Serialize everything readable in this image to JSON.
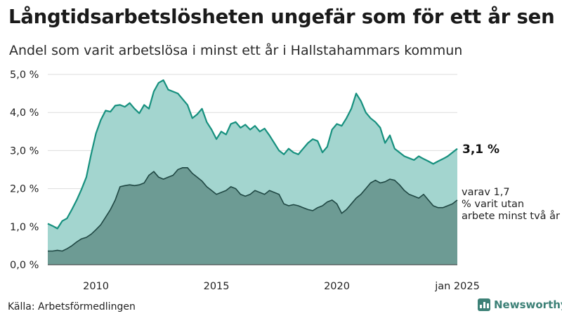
{
  "title": "Långtidsarbetslösheten ungefär som för ett år sen",
  "subtitle": "Andel som varit arbetslösa i minst ett år i Hallstahammars kommun",
  "source": "Källa: Arbetsförmedlingen",
  "brand": "Newsworthy",
  "colors": {
    "series1_fill": "#a3d5cf",
    "series1_line": "#16907e",
    "series2_fill": "#6d9b94",
    "series2_line": "#1f4743",
    "grid": "#dddddd",
    "brand": "#3d8177"
  },
  "chart_data": {
    "type": "area",
    "ylim": [
      0,
      5
    ],
    "xlim": [
      2008.0,
      2025.0
    ],
    "yticks": [
      {
        "value": 0,
        "label": "0,0 %"
      },
      {
        "value": 1,
        "label": "1,0 %"
      },
      {
        "value": 2,
        "label": "2,0 %"
      },
      {
        "value": 3,
        "label": "3,0 %"
      },
      {
        "value": 4,
        "label": "4,0 %"
      },
      {
        "value": 5,
        "label": "5,0 %"
      }
    ],
    "xticks": [
      {
        "value": 2010,
        "label": "2010"
      },
      {
        "value": 2015,
        "label": "2015"
      },
      {
        "value": 2020,
        "label": "2020"
      },
      {
        "value": 2025,
        "label": "jan 2025"
      }
    ],
    "grid": true,
    "series": [
      {
        "label": "3,1 %",
        "x": [
          2008.0,
          2008.2,
          2008.4,
          2008.6,
          2008.8,
          2009.0,
          2009.2,
          2009.4,
          2009.6,
          2009.8,
          2010.0,
          2010.2,
          2010.4,
          2010.6,
          2010.8,
          2011.0,
          2011.2,
          2011.4,
          2011.6,
          2011.8,
          2012.0,
          2012.2,
          2012.4,
          2012.6,
          2012.8,
          2013.0,
          2013.2,
          2013.4,
          2013.6,
          2013.8,
          2014.0,
          2014.2,
          2014.4,
          2014.6,
          2014.8,
          2015.0,
          2015.2,
          2015.4,
          2015.6,
          2015.8,
          2016.0,
          2016.2,
          2016.4,
          2016.6,
          2016.8,
          2017.0,
          2017.2,
          2017.4,
          2017.6,
          2017.8,
          2018.0,
          2018.2,
          2018.4,
          2018.6,
          2018.8,
          2019.0,
          2019.2,
          2019.4,
          2019.6,
          2019.8,
          2020.0,
          2020.2,
          2020.4,
          2020.6,
          2020.8,
          2021.0,
          2021.2,
          2021.4,
          2021.6,
          2021.8,
          2022.0,
          2022.2,
          2022.4,
          2022.6,
          2022.8,
          2023.0,
          2023.2,
          2023.4,
          2023.6,
          2023.8,
          2024.0,
          2024.2,
          2024.4,
          2024.6,
          2024.8,
          2025.0
        ],
        "values": [
          1.08,
          1.02,
          0.95,
          1.15,
          1.22,
          1.45,
          1.7,
          1.98,
          2.3,
          2.9,
          3.45,
          3.8,
          4.05,
          4.02,
          4.18,
          4.2,
          4.15,
          4.25,
          4.1,
          3.98,
          4.2,
          4.1,
          4.55,
          4.78,
          4.85,
          4.6,
          4.55,
          4.5,
          4.35,
          4.2,
          3.85,
          3.95,
          4.1,
          3.75,
          3.55,
          3.3,
          3.5,
          3.42,
          3.7,
          3.75,
          3.6,
          3.68,
          3.55,
          3.65,
          3.5,
          3.58,
          3.4,
          3.2,
          3.0,
          2.9,
          3.05,
          2.95,
          2.9,
          3.05,
          3.2,
          3.3,
          3.25,
          2.95,
          3.1,
          3.55,
          3.7,
          3.65,
          3.85,
          4.1,
          4.5,
          4.3,
          4.0,
          3.85,
          3.75,
          3.6,
          3.2,
          3.4,
          3.05,
          2.95,
          2.85,
          2.8,
          2.75,
          2.85,
          2.78,
          2.72,
          2.65,
          2.72,
          2.78,
          2.85,
          2.95,
          3.05
        ]
      },
      {
        "label": "varav 1,7 % varit utan arbete minst två år",
        "x": [
          2008.0,
          2008.2,
          2008.4,
          2008.6,
          2008.8,
          2009.0,
          2009.2,
          2009.4,
          2009.6,
          2009.8,
          2010.0,
          2010.2,
          2010.4,
          2010.6,
          2010.8,
          2011.0,
          2011.2,
          2011.4,
          2011.6,
          2011.8,
          2012.0,
          2012.2,
          2012.4,
          2012.6,
          2012.8,
          2013.0,
          2013.2,
          2013.4,
          2013.6,
          2013.8,
          2014.0,
          2014.2,
          2014.4,
          2014.6,
          2014.8,
          2015.0,
          2015.2,
          2015.4,
          2015.6,
          2015.8,
          2016.0,
          2016.2,
          2016.4,
          2016.6,
          2016.8,
          2017.0,
          2017.2,
          2017.4,
          2017.6,
          2017.8,
          2018.0,
          2018.2,
          2018.4,
          2018.6,
          2018.8,
          2019.0,
          2019.2,
          2019.4,
          2019.6,
          2019.8,
          2020.0,
          2020.2,
          2020.4,
          2020.6,
          2020.8,
          2021.0,
          2021.2,
          2021.4,
          2021.6,
          2021.8,
          2022.0,
          2022.2,
          2022.4,
          2022.6,
          2022.8,
          2023.0,
          2023.2,
          2023.4,
          2023.6,
          2023.8,
          2024.0,
          2024.2,
          2024.4,
          2024.6,
          2024.8,
          2025.0
        ],
        "values": [
          0.36,
          0.36,
          0.38,
          0.36,
          0.42,
          0.5,
          0.6,
          0.68,
          0.72,
          0.8,
          0.92,
          1.05,
          1.25,
          1.45,
          1.7,
          2.05,
          2.08,
          2.1,
          2.08,
          2.1,
          2.15,
          2.35,
          2.45,
          2.3,
          2.25,
          2.3,
          2.35,
          2.5,
          2.55,
          2.55,
          2.4,
          2.3,
          2.2,
          2.05,
          1.95,
          1.85,
          1.9,
          1.95,
          2.05,
          2.0,
          1.85,
          1.8,
          1.85,
          1.95,
          1.9,
          1.85,
          1.95,
          1.9,
          1.85,
          1.6,
          1.55,
          1.58,
          1.55,
          1.5,
          1.45,
          1.42,
          1.5,
          1.55,
          1.65,
          1.7,
          1.6,
          1.35,
          1.45,
          1.6,
          1.75,
          1.85,
          2.0,
          2.15,
          2.22,
          2.15,
          2.18,
          2.25,
          2.22,
          2.1,
          1.95,
          1.85,
          1.8,
          1.75,
          1.85,
          1.7,
          1.55,
          1.5,
          1.5,
          1.55,
          1.6,
          1.7
        ]
      }
    ]
  }
}
